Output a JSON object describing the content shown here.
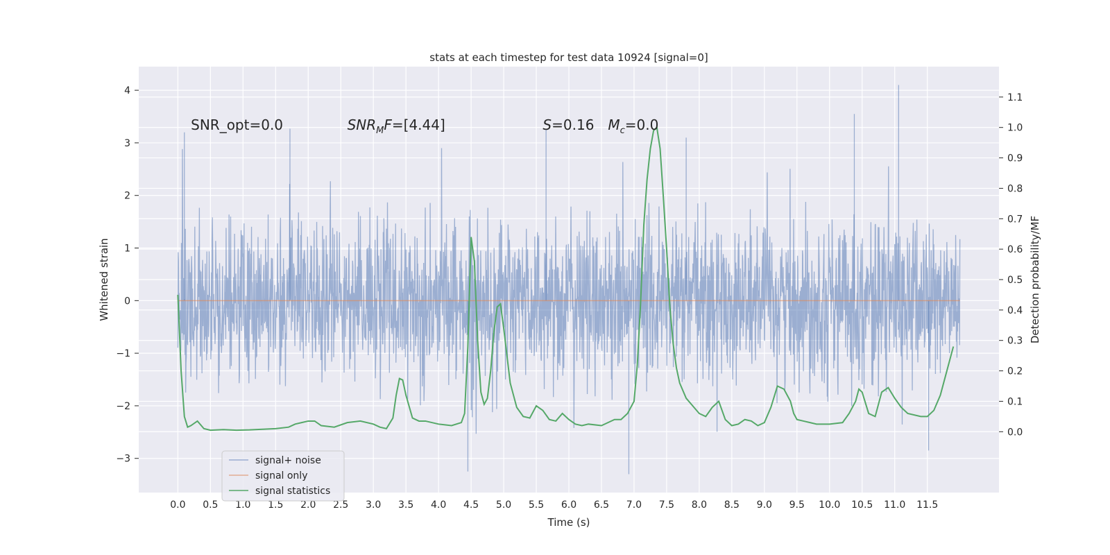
{
  "chart_data": {
    "type": "line",
    "title": "stats at each timestep for test data 10924 [signal=0]",
    "xlabel": "Time (s)",
    "ylabel": "Whitened strain",
    "y2label": "Detection probability/MF",
    "xlim": [
      -0.6,
      12.6
    ],
    "ylim": [
      -3.65,
      4.45
    ],
    "y2lim": [
      -0.2,
      1.2
    ],
    "xticks": [
      0.0,
      0.5,
      1.0,
      1.5,
      2.0,
      2.5,
      3.0,
      3.5,
      4.0,
      4.5,
      5.0,
      5.5,
      6.0,
      6.5,
      7.0,
      7.5,
      8.0,
      8.5,
      9.0,
      9.5,
      10.0,
      10.5,
      11.0,
      11.5
    ],
    "yticks": [
      -3,
      -2,
      -1,
      0,
      1,
      2,
      3,
      4
    ],
    "y2ticks": [
      0.0,
      0.1,
      0.2,
      0.3,
      0.4,
      0.5,
      0.6,
      0.7,
      0.8,
      0.9,
      1.0,
      1.1
    ],
    "grid": true,
    "legend_position": "lower-left",
    "annotations": [
      {
        "label": "snr-opt",
        "text": "SNR_opt=0.0",
        "x": 0.2,
        "y": 3.25
      },
      {
        "label": "snr-mf",
        "text": "SNR_MF=[4.44]",
        "base": "SNR",
        "sub": "M",
        "after": "F=[4.44]",
        "x": 2.6,
        "y": 3.25
      },
      {
        "label": "stat-s",
        "text": "S=0.16",
        "base": "S",
        "after": "=0.16",
        "x": 5.6,
        "y": 3.25
      },
      {
        "label": "chirp-mass",
        "text": "M_c=0.0",
        "base": "M",
        "sub": "c",
        "after": "=0.0",
        "x": 6.6,
        "y": 3.25
      }
    ],
    "series": [
      {
        "name": "signal+ noise",
        "color": "#4c72b0",
        "opacity": 0.5,
        "axis": "left",
        "description": "whitened strain noise, roughly Gaussian, sigma ~0.75, samples every 0.005 s from 0 to 12",
        "t_start": 0.0,
        "t_end": 12.0,
        "sigma": 0.75,
        "seed": 10924,
        "outliers": [
          {
            "t": 0.1,
            "y": 3.2
          },
          {
            "t": 1.72,
            "y": 3.27
          },
          {
            "t": 4.45,
            "y": -3.25
          },
          {
            "t": 6.92,
            "y": -3.3
          },
          {
            "t": 10.38,
            "y": 3.55
          },
          {
            "t": 11.06,
            "y": 4.1
          },
          {
            "t": 5.65,
            "y": 3.25
          },
          {
            "t": 7.8,
            "y": 3.1
          },
          {
            "t": 11.52,
            "y": -2.85
          }
        ]
      },
      {
        "name": "signal only",
        "color": "#dd8452",
        "opacity": 0.6,
        "axis": "left",
        "x": [
          0.0,
          12.0
        ],
        "y": [
          0.0,
          0.0
        ]
      },
      {
        "name": "signal statistics",
        "color": "#55a868",
        "opacity": 1.0,
        "axis": "right",
        "x": [
          0.0,
          0.05,
          0.1,
          0.15,
          0.2,
          0.3,
          0.4,
          0.5,
          0.7,
          0.9,
          1.1,
          1.3,
          1.5,
          1.7,
          1.8,
          1.9,
          2.0,
          2.1,
          2.2,
          2.4,
          2.6,
          2.8,
          3.0,
          3.1,
          3.2,
          3.3,
          3.35,
          3.4,
          3.45,
          3.5,
          3.6,
          3.7,
          3.8,
          4.0,
          4.2,
          4.35,
          4.4,
          4.45,
          4.5,
          4.55,
          4.6,
          4.65,
          4.7,
          4.75,
          4.8,
          4.85,
          4.9,
          4.95,
          5.0,
          5.05,
          5.1,
          5.2,
          5.3,
          5.4,
          5.5,
          5.6,
          5.7,
          5.8,
          5.9,
          6.0,
          6.1,
          6.2,
          6.3,
          6.5,
          6.7,
          6.8,
          6.9,
          7.0,
          7.05,
          7.1,
          7.15,
          7.2,
          7.25,
          7.3,
          7.35,
          7.4,
          7.45,
          7.5,
          7.55,
          7.6,
          7.65,
          7.7,
          7.8,
          7.9,
          8.0,
          8.1,
          8.2,
          8.3,
          8.4,
          8.5,
          8.6,
          8.7,
          8.8,
          8.9,
          9.0,
          9.1,
          9.2,
          9.3,
          9.4,
          9.45,
          9.5,
          9.6,
          9.7,
          9.8,
          10.0,
          10.2,
          10.3,
          10.4,
          10.45,
          10.5,
          10.6,
          10.7,
          10.8,
          10.9,
          11.0,
          11.1,
          11.2,
          11.4,
          11.5,
          11.6,
          11.7,
          11.8,
          11.9
        ],
        "y": [
          0.45,
          0.2,
          0.05,
          0.015,
          0.02,
          0.035,
          0.01,
          0.005,
          0.007,
          0.005,
          0.006,
          0.008,
          0.01,
          0.015,
          0.025,
          0.03,
          0.035,
          0.035,
          0.02,
          0.015,
          0.03,
          0.035,
          0.025,
          0.015,
          0.01,
          0.045,
          0.12,
          0.175,
          0.17,
          0.12,
          0.045,
          0.035,
          0.035,
          0.025,
          0.02,
          0.03,
          0.06,
          0.28,
          0.64,
          0.56,
          0.3,
          0.13,
          0.09,
          0.11,
          0.2,
          0.33,
          0.41,
          0.42,
          0.34,
          0.25,
          0.16,
          0.08,
          0.05,
          0.045,
          0.085,
          0.07,
          0.04,
          0.035,
          0.06,
          0.04,
          0.025,
          0.02,
          0.025,
          0.02,
          0.04,
          0.04,
          0.06,
          0.1,
          0.22,
          0.42,
          0.68,
          0.83,
          0.93,
          0.99,
          1.0,
          0.93,
          0.77,
          0.6,
          0.41,
          0.29,
          0.21,
          0.16,
          0.11,
          0.085,
          0.06,
          0.05,
          0.08,
          0.1,
          0.04,
          0.02,
          0.025,
          0.04,
          0.035,
          0.02,
          0.03,
          0.08,
          0.15,
          0.14,
          0.1,
          0.06,
          0.04,
          0.035,
          0.03,
          0.025,
          0.025,
          0.03,
          0.06,
          0.1,
          0.14,
          0.13,
          0.06,
          0.05,
          0.13,
          0.145,
          0.11,
          0.08,
          0.06,
          0.05,
          0.05,
          0.07,
          0.12,
          0.2,
          0.28
        ]
      }
    ]
  }
}
